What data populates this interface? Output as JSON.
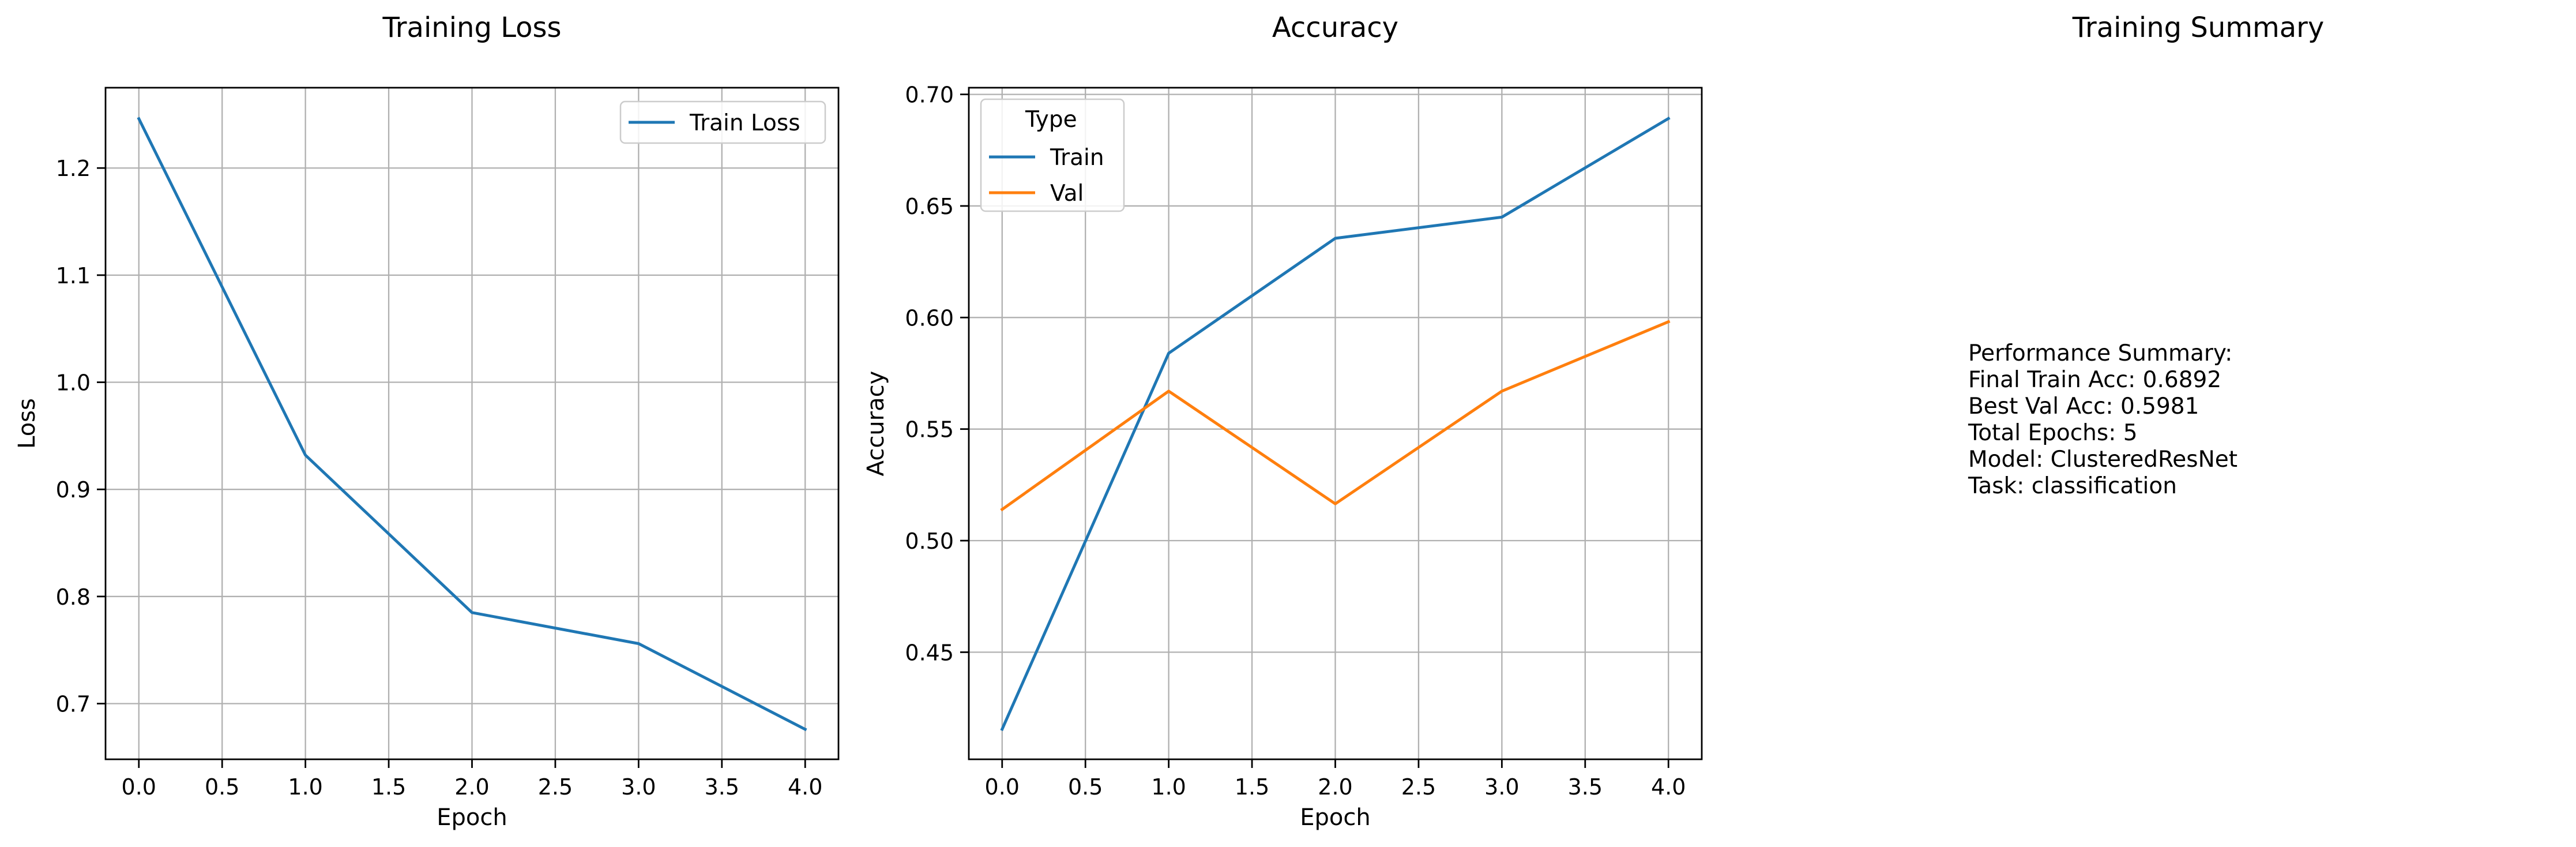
{
  "chart_data": [
    {
      "type": "line",
      "title": "Training Loss",
      "xlabel": "Epoch",
      "ylabel": "Loss",
      "x": [
        0,
        1,
        2,
        3,
        4
      ],
      "series": [
        {
          "name": "Train Loss",
          "color": "#1f77b4",
          "values": [
            1.246,
            0.932,
            0.785,
            0.756,
            0.676
          ]
        }
      ],
      "xlim": [
        -0.2,
        4.2
      ],
      "ylim": [
        0.648,
        1.275
      ],
      "xticks": [
        0.0,
        0.5,
        1.0,
        1.5,
        2.0,
        2.5,
        3.0,
        3.5,
        4.0
      ],
      "yticks": [
        0.7,
        0.8,
        0.9,
        1.0,
        1.1,
        1.2
      ],
      "xtick_labels": [
        "0.0",
        "0.5",
        "1.0",
        "1.5",
        "2.0",
        "2.5",
        "3.0",
        "3.5",
        "4.0"
      ],
      "ytick_labels": [
        "0.7",
        "0.8",
        "0.9",
        "1.0",
        "1.1",
        "1.2"
      ],
      "grid": true,
      "legend": {
        "title": "",
        "position": "upper right"
      }
    },
    {
      "type": "line",
      "title": "Accuracy",
      "xlabel": "Epoch",
      "ylabel": "Accuracy",
      "x": [
        0,
        1,
        2,
        3,
        4
      ],
      "series": [
        {
          "name": "Train",
          "color": "#1f77b4",
          "values": [
            0.4155,
            0.584,
            0.6355,
            0.645,
            0.6892
          ]
        },
        {
          "name": "Val",
          "color": "#ff7f0e",
          "values": [
            0.514,
            0.567,
            0.5165,
            0.567,
            0.5981
          ]
        }
      ],
      "xlim": [
        -0.2,
        4.2
      ],
      "ylim": [
        0.402,
        0.703
      ],
      "xticks": [
        0.0,
        0.5,
        1.0,
        1.5,
        2.0,
        2.5,
        3.0,
        3.5,
        4.0
      ],
      "yticks": [
        0.45,
        0.5,
        0.55,
        0.6,
        0.65,
        0.7
      ],
      "xtick_labels": [
        "0.0",
        "0.5",
        "1.0",
        "1.5",
        "2.0",
        "2.5",
        "3.0",
        "3.5",
        "4.0"
      ],
      "ytick_labels": [
        "0.45",
        "0.50",
        "0.55",
        "0.60",
        "0.65",
        "0.70"
      ],
      "grid": true,
      "legend": {
        "title": "Type",
        "position": "upper left"
      }
    }
  ],
  "summary": {
    "title": "Training Summary",
    "lines": [
      "Performance Summary:",
      "Final Train Acc: 0.6892",
      "Best Val Acc: 0.5981",
      "Total Epochs: 5",
      "Model: ClusteredResNet",
      "Task: classification"
    ]
  }
}
